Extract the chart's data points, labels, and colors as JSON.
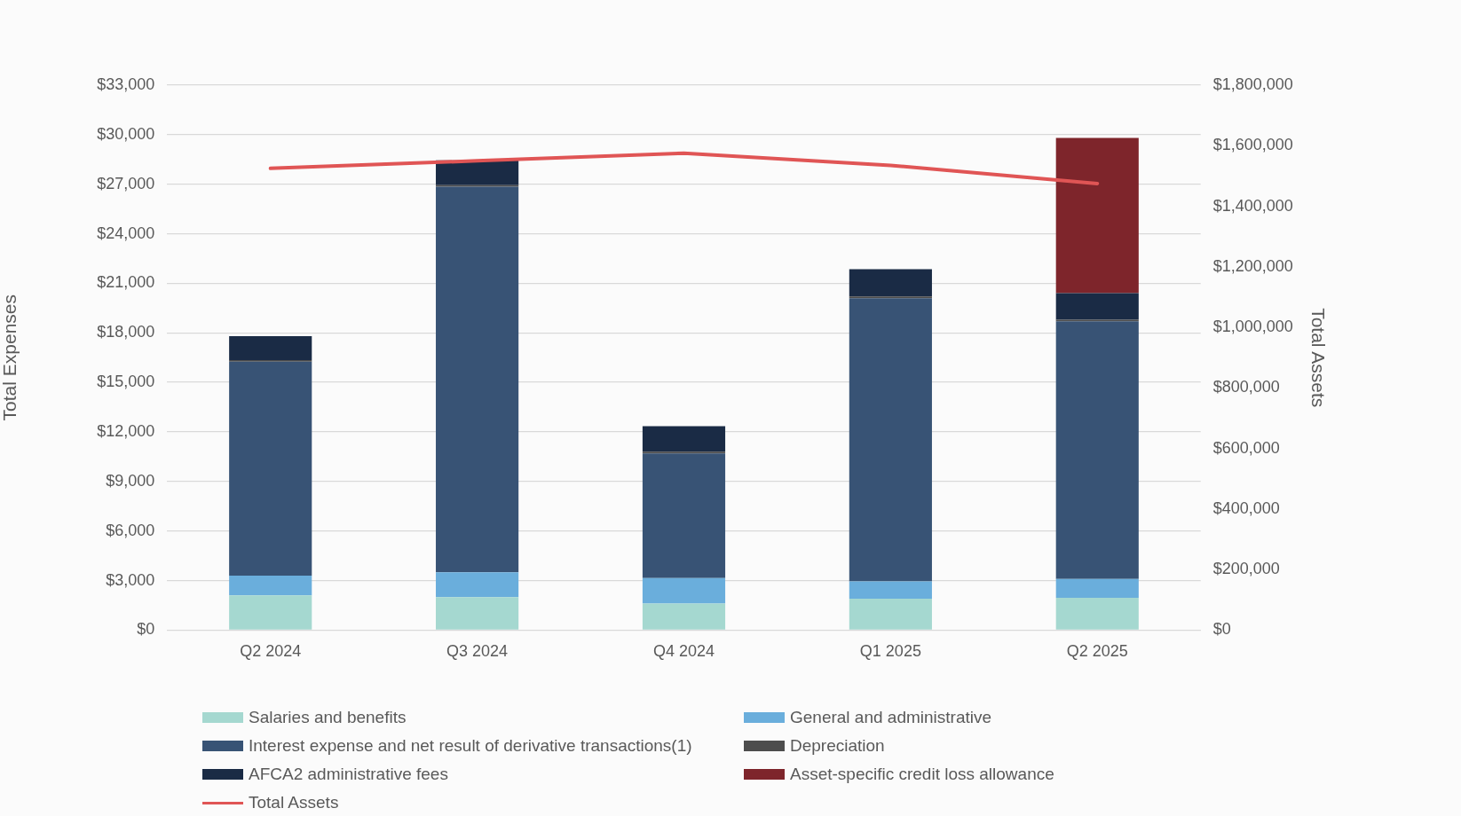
{
  "chart_data": {
    "type": "bar",
    "stacked": true,
    "categories": [
      "Q2 2024",
      "Q3 2024",
      "Q4 2024",
      "Q1 2025",
      "Q2 2025"
    ],
    "ylabel": "Total Expenses",
    "y2label": "Total Assets",
    "ylim": [
      0,
      33000
    ],
    "yticks": [
      {
        "value": 0,
        "label": "$0"
      },
      {
        "value": 3000,
        "label": "$3,000"
      },
      {
        "value": 6000,
        "label": "$6,000"
      },
      {
        "value": 9000,
        "label": "$9,000"
      },
      {
        "value": 12000,
        "label": "$12,000"
      },
      {
        "value": 15000,
        "label": "$15,000"
      },
      {
        "value": 18000,
        "label": "$18,000"
      },
      {
        "value": 21000,
        "label": "$21,000"
      },
      {
        "value": 24000,
        "label": "$24,000"
      },
      {
        "value": 27000,
        "label": "$27,000"
      },
      {
        "value": 30000,
        "label": "$30,000"
      },
      {
        "value": 33000,
        "label": "$33,000"
      }
    ],
    "y2lim": [
      0,
      1800000
    ],
    "y2ticks": [
      {
        "value": 0,
        "label": "$0"
      },
      {
        "value": 200000,
        "label": "$200,000"
      },
      {
        "value": 400000,
        "label": "$400,000"
      },
      {
        "value": 600000,
        "label": "$600,000"
      },
      {
        "value": 800000,
        "label": "$800,000"
      },
      {
        "value": 1000000,
        "label": "$1,000,000"
      },
      {
        "value": 1200000,
        "label": "$1,200,000"
      },
      {
        "value": 1400000,
        "label": "$1,400,000"
      },
      {
        "value": 1600000,
        "label": "$1,600,000"
      },
      {
        "value": 1800000,
        "label": "$1,800,000"
      }
    ],
    "grid": "y",
    "legend": "bottom",
    "series": [
      {
        "name": "Salaries and benefits",
        "color": "#a5d8d0",
        "values": [
          2100,
          2000,
          1600,
          1900,
          1950
        ]
      },
      {
        "name": "General and administrative",
        "color": "#6aaedc",
        "values": [
          1200,
          1500,
          1550,
          1050,
          1150
        ]
      },
      {
        "name": "Interest expense and net result of derivative transactions(1)",
        "color": "#385375",
        "values": [
          12950,
          23350,
          7550,
          17150,
          15600
        ]
      },
      {
        "name": "Depreciation",
        "color": "#4d4d4d",
        "values": [
          100,
          100,
          100,
          100,
          100
        ]
      },
      {
        "name": "AFCA2 administrative fees",
        "color": "#1a2b45",
        "values": [
          1450,
          1500,
          1550,
          1650,
          1600
        ]
      },
      {
        "name": "Asset-specific credit loss allowance",
        "color": "#7e252b",
        "values": [
          null,
          null,
          null,
          null,
          9400
        ]
      },
      {
        "name": "Total Assets",
        "type": "line",
        "axis": "y2",
        "color": "#e05555",
        "values": [
          1525000,
          1550000,
          1575000,
          1535000,
          1475000
        ]
      }
    ]
  }
}
